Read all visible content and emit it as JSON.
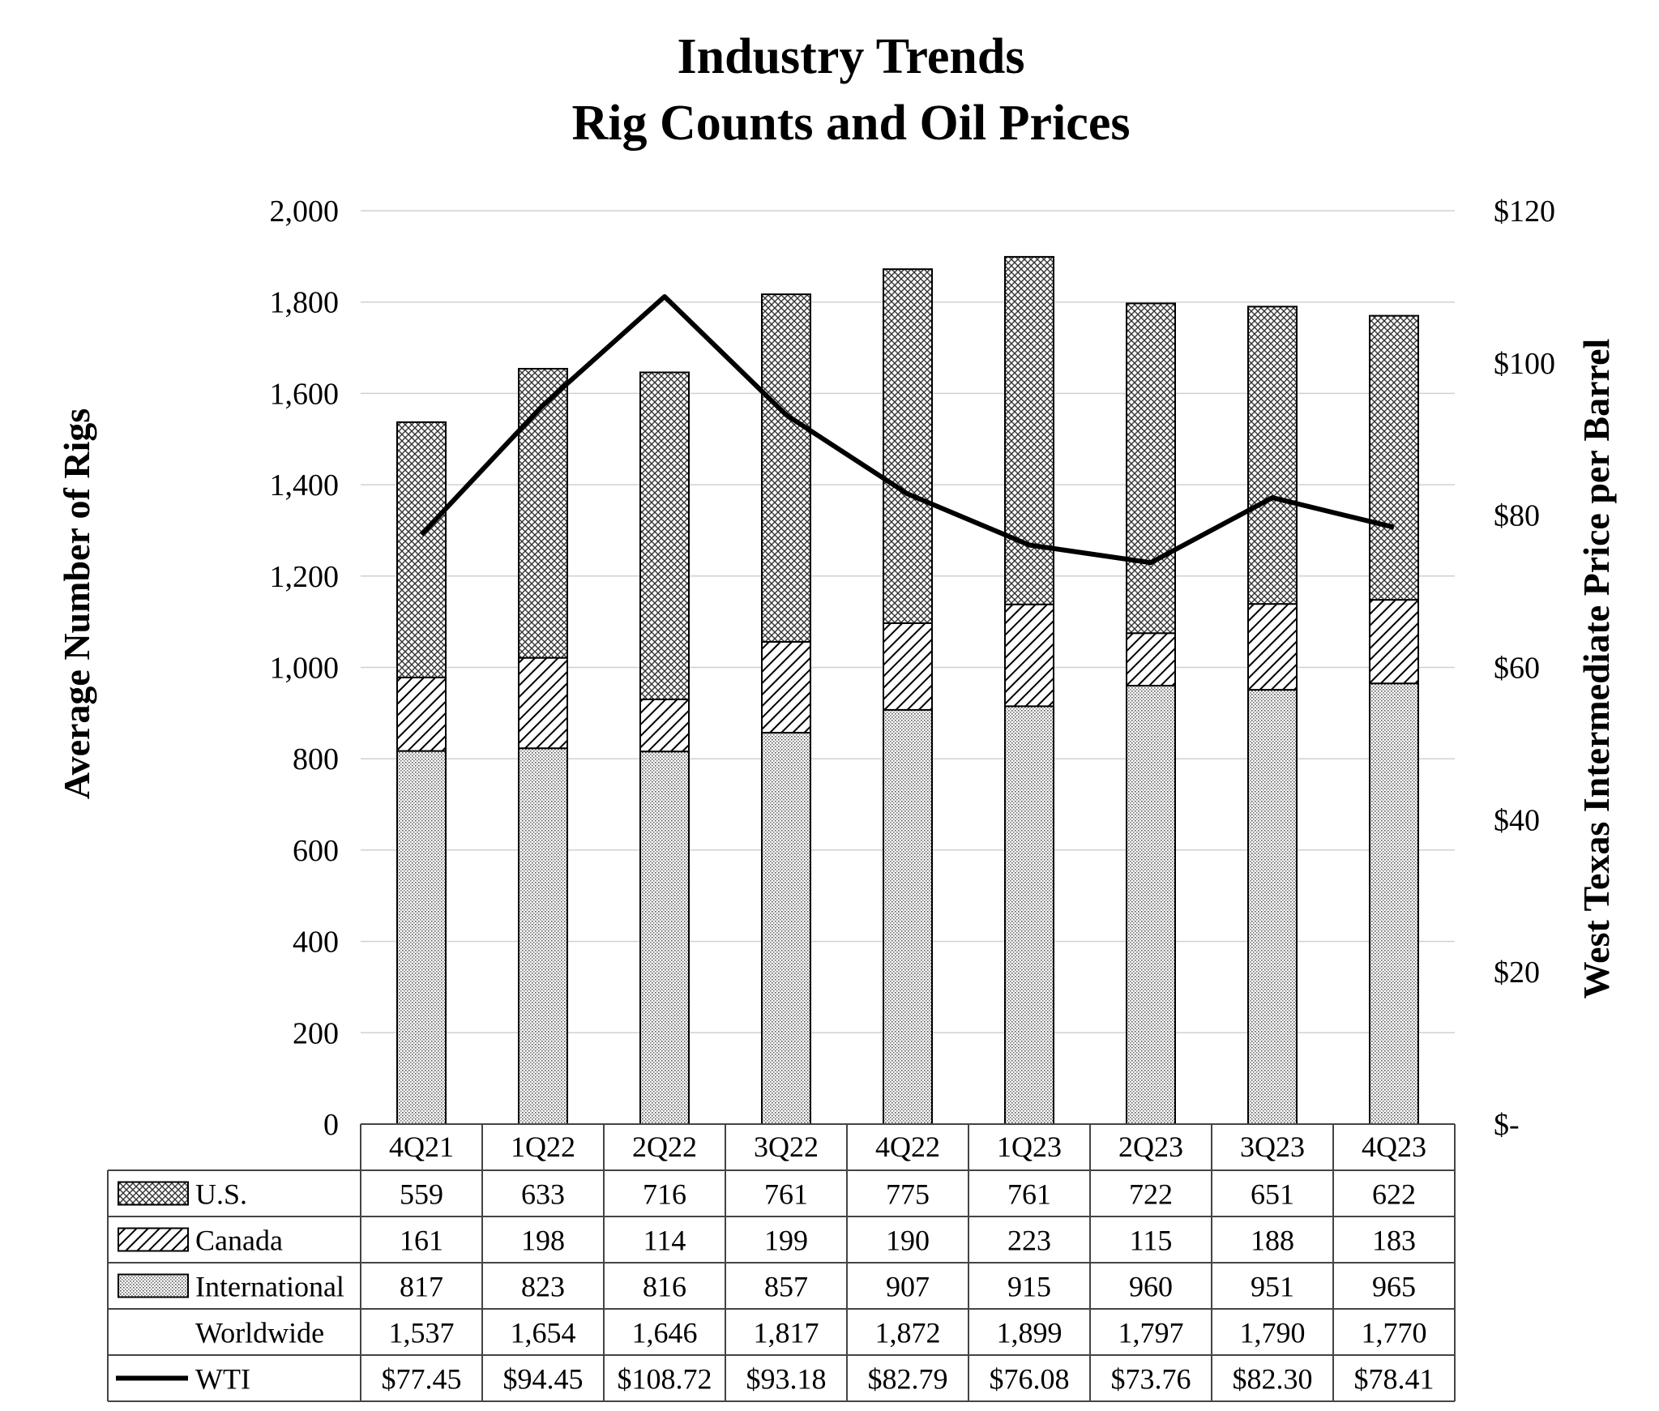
{
  "chart_data": {
    "type": "bar",
    "stacked": true,
    "title": [
      "Industry Trends",
      "Rig Counts and Oil Prices"
    ],
    "ylabel": "Average Number of Rigs",
    "y2label": "West Texas Intermediate Price per Barrel",
    "ylim": [
      0,
      2000
    ],
    "yticks": [
      0,
      200,
      400,
      600,
      800,
      1000,
      1200,
      1400,
      1600,
      1800,
      2000
    ],
    "ytick_labels": [
      "0",
      "200",
      "400",
      "600",
      "800",
      "1,000",
      "1,200",
      "1,400",
      "1,600",
      "1,800",
      "2,000"
    ],
    "y2lim": [
      0,
      120
    ],
    "y2ticks": [
      0,
      20,
      40,
      60,
      80,
      100,
      120
    ],
    "y2tick_labels": [
      "$-",
      "$20",
      "$40",
      "$60",
      "$80",
      "$100",
      "$120"
    ],
    "grid": true,
    "categories": [
      "4Q21",
      "1Q22",
      "2Q22",
      "3Q22",
      "4Q22",
      "1Q23",
      "2Q23",
      "3Q23",
      "4Q23"
    ],
    "series": [
      {
        "name": "International",
        "kind": "bar",
        "pattern": "dots",
        "values": [
          817,
          823,
          816,
          857,
          907,
          915,
          960,
          951,
          965
        ]
      },
      {
        "name": "Canada",
        "kind": "bar",
        "pattern": "diagonal",
        "values": [
          161,
          198,
          114,
          199,
          190,
          223,
          115,
          188,
          183
        ]
      },
      {
        "name": "U.S.",
        "kind": "bar",
        "pattern": "crosshatch",
        "values": [
          559,
          633,
          716,
          761,
          775,
          761,
          722,
          651,
          622
        ]
      },
      {
        "name": "WTI",
        "kind": "line",
        "axis": "right",
        "values": [
          77.45,
          94.45,
          108.72,
          93.18,
          82.79,
          76.08,
          73.76,
          82.3,
          78.41
        ]
      }
    ],
    "table": {
      "rows": [
        {
          "label": "U.S.",
          "legend": "crosshatch",
          "cells": [
            "559",
            "633",
            "716",
            "761",
            "775",
            "761",
            "722",
            "651",
            "622"
          ]
        },
        {
          "label": "Canada",
          "legend": "diagonal",
          "cells": [
            "161",
            "198",
            "114",
            "199",
            "190",
            "223",
            "115",
            "188",
            "183"
          ]
        },
        {
          "label": "International",
          "legend": "dots",
          "cells": [
            "817",
            "823",
            "816",
            "857",
            "907",
            "915",
            "960",
            "951",
            "965"
          ]
        },
        {
          "label": "Worldwide",
          "legend": "none",
          "cells": [
            "1,537",
            "1,654",
            "1,646",
            "1,817",
            "1,872",
            "1,899",
            "1,797",
            "1,790",
            "1,770"
          ]
        },
        {
          "label": "WTI",
          "legend": "line",
          "cells": [
            "$77.45",
            "$94.45",
            "$108.72",
            "$93.18",
            "$82.79",
            "$76.08",
            "$73.76",
            "$82.30",
            "$78.41"
          ]
        }
      ]
    },
    "colors": {
      "ink": "#000000",
      "grid": "#d0d0d0",
      "bar_fill": "#ffffff"
    }
  }
}
